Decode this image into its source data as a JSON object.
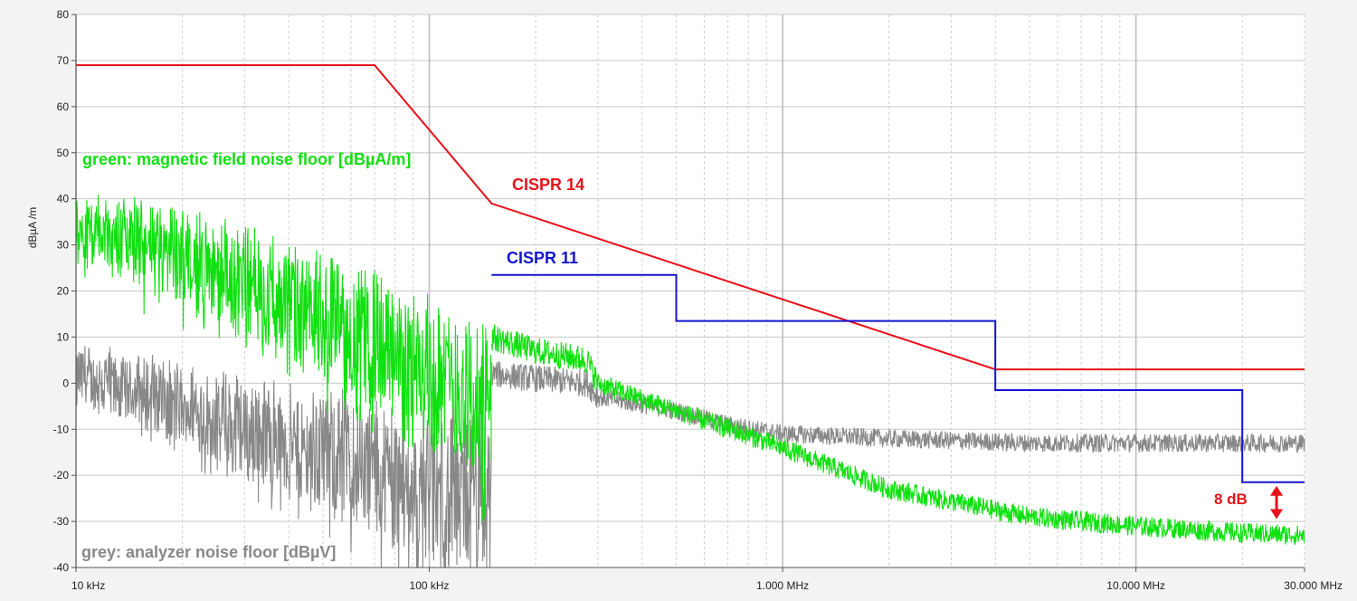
{
  "chart_data": {
    "type": "line",
    "ylabel": "dBµA /m",
    "x_scale": "log",
    "x_unit": "Hz",
    "xlim": [
      10000,
      30000000
    ],
    "ylim": [
      -40,
      80
    ],
    "y_ticks": [
      "80",
      "70",
      "60",
      "50",
      "40",
      "30",
      "20",
      "10",
      "0",
      "-10",
      "-20",
      "-30",
      "-40"
    ],
    "x_tick_labels": [
      {
        "x": 10000,
        "label": "10 kHz"
      },
      {
        "x": 100000,
        "label": "100 kHz"
      },
      {
        "x": 1000000,
        "label": "1.000 MHz"
      },
      {
        "x": 10000000,
        "label": "10.000 MHz"
      },
      {
        "x": 30000000,
        "label": "30.000 MHz"
      }
    ],
    "grid": true,
    "series": [
      {
        "name": "CISPR 14",
        "color": "#e8101a",
        "x": [
          10000,
          70000,
          150000,
          4000000,
          30000000
        ],
        "y": [
          69,
          69,
          39,
          3,
          3
        ]
      },
      {
        "name": "CISPR 11",
        "color": "#1414d0",
        "x": [
          150000,
          500000,
          500000,
          4000000,
          4000000,
          20000000,
          20000000,
          30000000
        ],
        "y": [
          23.5,
          23.5,
          13.5,
          13.5,
          -1.5,
          -1.5,
          -21.5,
          -21.5
        ]
      },
      {
        "name": "green: magnetic field noise floor [dBµA/m]",
        "color": "#10e010",
        "style": "noise",
        "x": [
          10000,
          15000,
          30000,
          60000,
          100000,
          150000,
          150000,
          200000,
          280000,
          300000,
          500000,
          1000000,
          2000000,
          5000000,
          10000000,
          20000000,
          30000000
        ],
        "y": [
          35,
          32,
          24,
          14,
          5,
          -3,
          10,
          7,
          5,
          0,
          -6,
          -14,
          -23,
          -29,
          -31,
          -32.5,
          -33
        ]
      },
      {
        "name": "grey: analyzer noise floor [dBµV]",
        "color": "#888888",
        "style": "noise",
        "x": [
          10000,
          15000,
          30000,
          60000,
          100000,
          150000,
          150000,
          200000,
          280000,
          300000,
          500000,
          700000,
          1000000,
          2000000,
          5000000,
          10000000,
          30000000
        ],
        "y": [
          3,
          0,
          -8,
          -14,
          -20,
          -22,
          2,
          1,
          0,
          -3,
          -6,
          -9,
          -11,
          -12,
          -13,
          -13,
          -13
        ]
      }
    ],
    "annotations": [
      {
        "text": "CISPR 14",
        "color": "#e8101a"
      },
      {
        "text": "CISPR 11",
        "color": "#1414d0"
      },
      {
        "text": "green: magnetic field noise floor [dBµA/m]",
        "color": "#10e010"
      },
      {
        "text": "grey: analyzer noise floor [dBµV]",
        "color": "#888888"
      },
      {
        "text": "8 dB",
        "color": "#e8101a",
        "between_y": [
          -21.5,
          -29.5
        ],
        "at_x": 25000000
      }
    ]
  }
}
